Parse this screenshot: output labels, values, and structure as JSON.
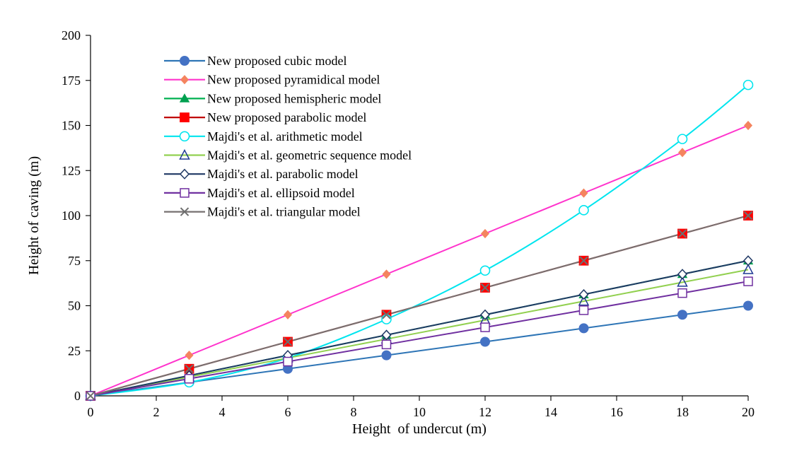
{
  "chart_data": {
    "type": "line",
    "title": "",
    "xlabel": "Height  of undercut (m)",
    "ylabel": "Height of caving (m)",
    "xlim": [
      0,
      20
    ],
    "ylim": [
      0,
      200
    ],
    "x_ticks": [
      0,
      2,
      4,
      6,
      8,
      10,
      12,
      14,
      16,
      18,
      20
    ],
    "y_ticks": [
      0,
      25,
      50,
      75,
      100,
      125,
      150,
      175,
      200
    ],
    "grid": false,
    "legend_position": "top-left",
    "x": [
      0,
      3,
      6,
      9,
      12,
      15,
      18,
      20
    ],
    "series": [
      {
        "name": "New proposed cubic model",
        "values": [
          0,
          7.5,
          15,
          22.5,
          30,
          37.5,
          45,
          50
        ],
        "color": "#2E75B6",
        "marker_color": "#4472C4",
        "marker": "filled-circle",
        "smooth": false
      },
      {
        "name": "New proposed pyramidical model",
        "values": [
          0,
          22.5,
          45,
          67.5,
          90,
          112.5,
          135,
          150
        ],
        "color": "#FF33CC",
        "marker_color": "#F4845F",
        "marker": "filled-diamond",
        "smooth": false
      },
      {
        "name": "New proposed hemispheric model",
        "values": [
          0,
          11.25,
          22.5,
          33.75,
          45,
          56.25,
          67.5,
          75
        ],
        "color": "#00B050",
        "marker_color": "#00A050",
        "marker": "filled-triangle",
        "smooth": false
      },
      {
        "name": "New proposed parabolic model",
        "values": [
          0,
          15,
          30,
          45,
          60,
          75,
          90,
          100
        ],
        "color": "#C00000",
        "marker_color": "#FF0000",
        "marker": "filled-square",
        "smooth": false
      },
      {
        "name": "Majdi's et al. arithmetic model",
        "values": [
          0,
          7.5,
          21,
          42.5,
          69.5,
          103,
          142.5,
          172.5
        ],
        "color": "#00E5EE",
        "marker_color": "#00E5EE",
        "marker": "open-circle",
        "smooth": true
      },
      {
        "name": "Majdi's et al. geometric sequence model",
        "values": [
          0,
          10.5,
          21,
          31.5,
          42,
          52.5,
          63,
          70
        ],
        "color": "#92D050",
        "marker_color": "#1F3A93",
        "marker": "open-triangle",
        "smooth": false
      },
      {
        "name": "Majdi's et al. parabolic model",
        "values": [
          0,
          11.25,
          22.5,
          33.75,
          45,
          56.25,
          67.5,
          75
        ],
        "color": "#1F3864",
        "marker_color": "#1F3864",
        "marker": "open-diamond",
        "smooth": false
      },
      {
        "name": "Majdi's et al. ellipsoid model",
        "values": [
          0,
          9.5,
          19,
          28.5,
          38,
          47.5,
          57,
          63.5
        ],
        "color": "#7030A0",
        "marker_color": "#7030A0",
        "marker": "open-square",
        "smooth": false
      },
      {
        "name": "Majdi's et al. triangular model",
        "values": [
          0,
          15,
          30,
          45,
          60,
          75,
          90,
          100
        ],
        "color": "#767171",
        "marker_color": "#6E6E6E",
        "marker": "x",
        "smooth": false
      }
    ]
  }
}
